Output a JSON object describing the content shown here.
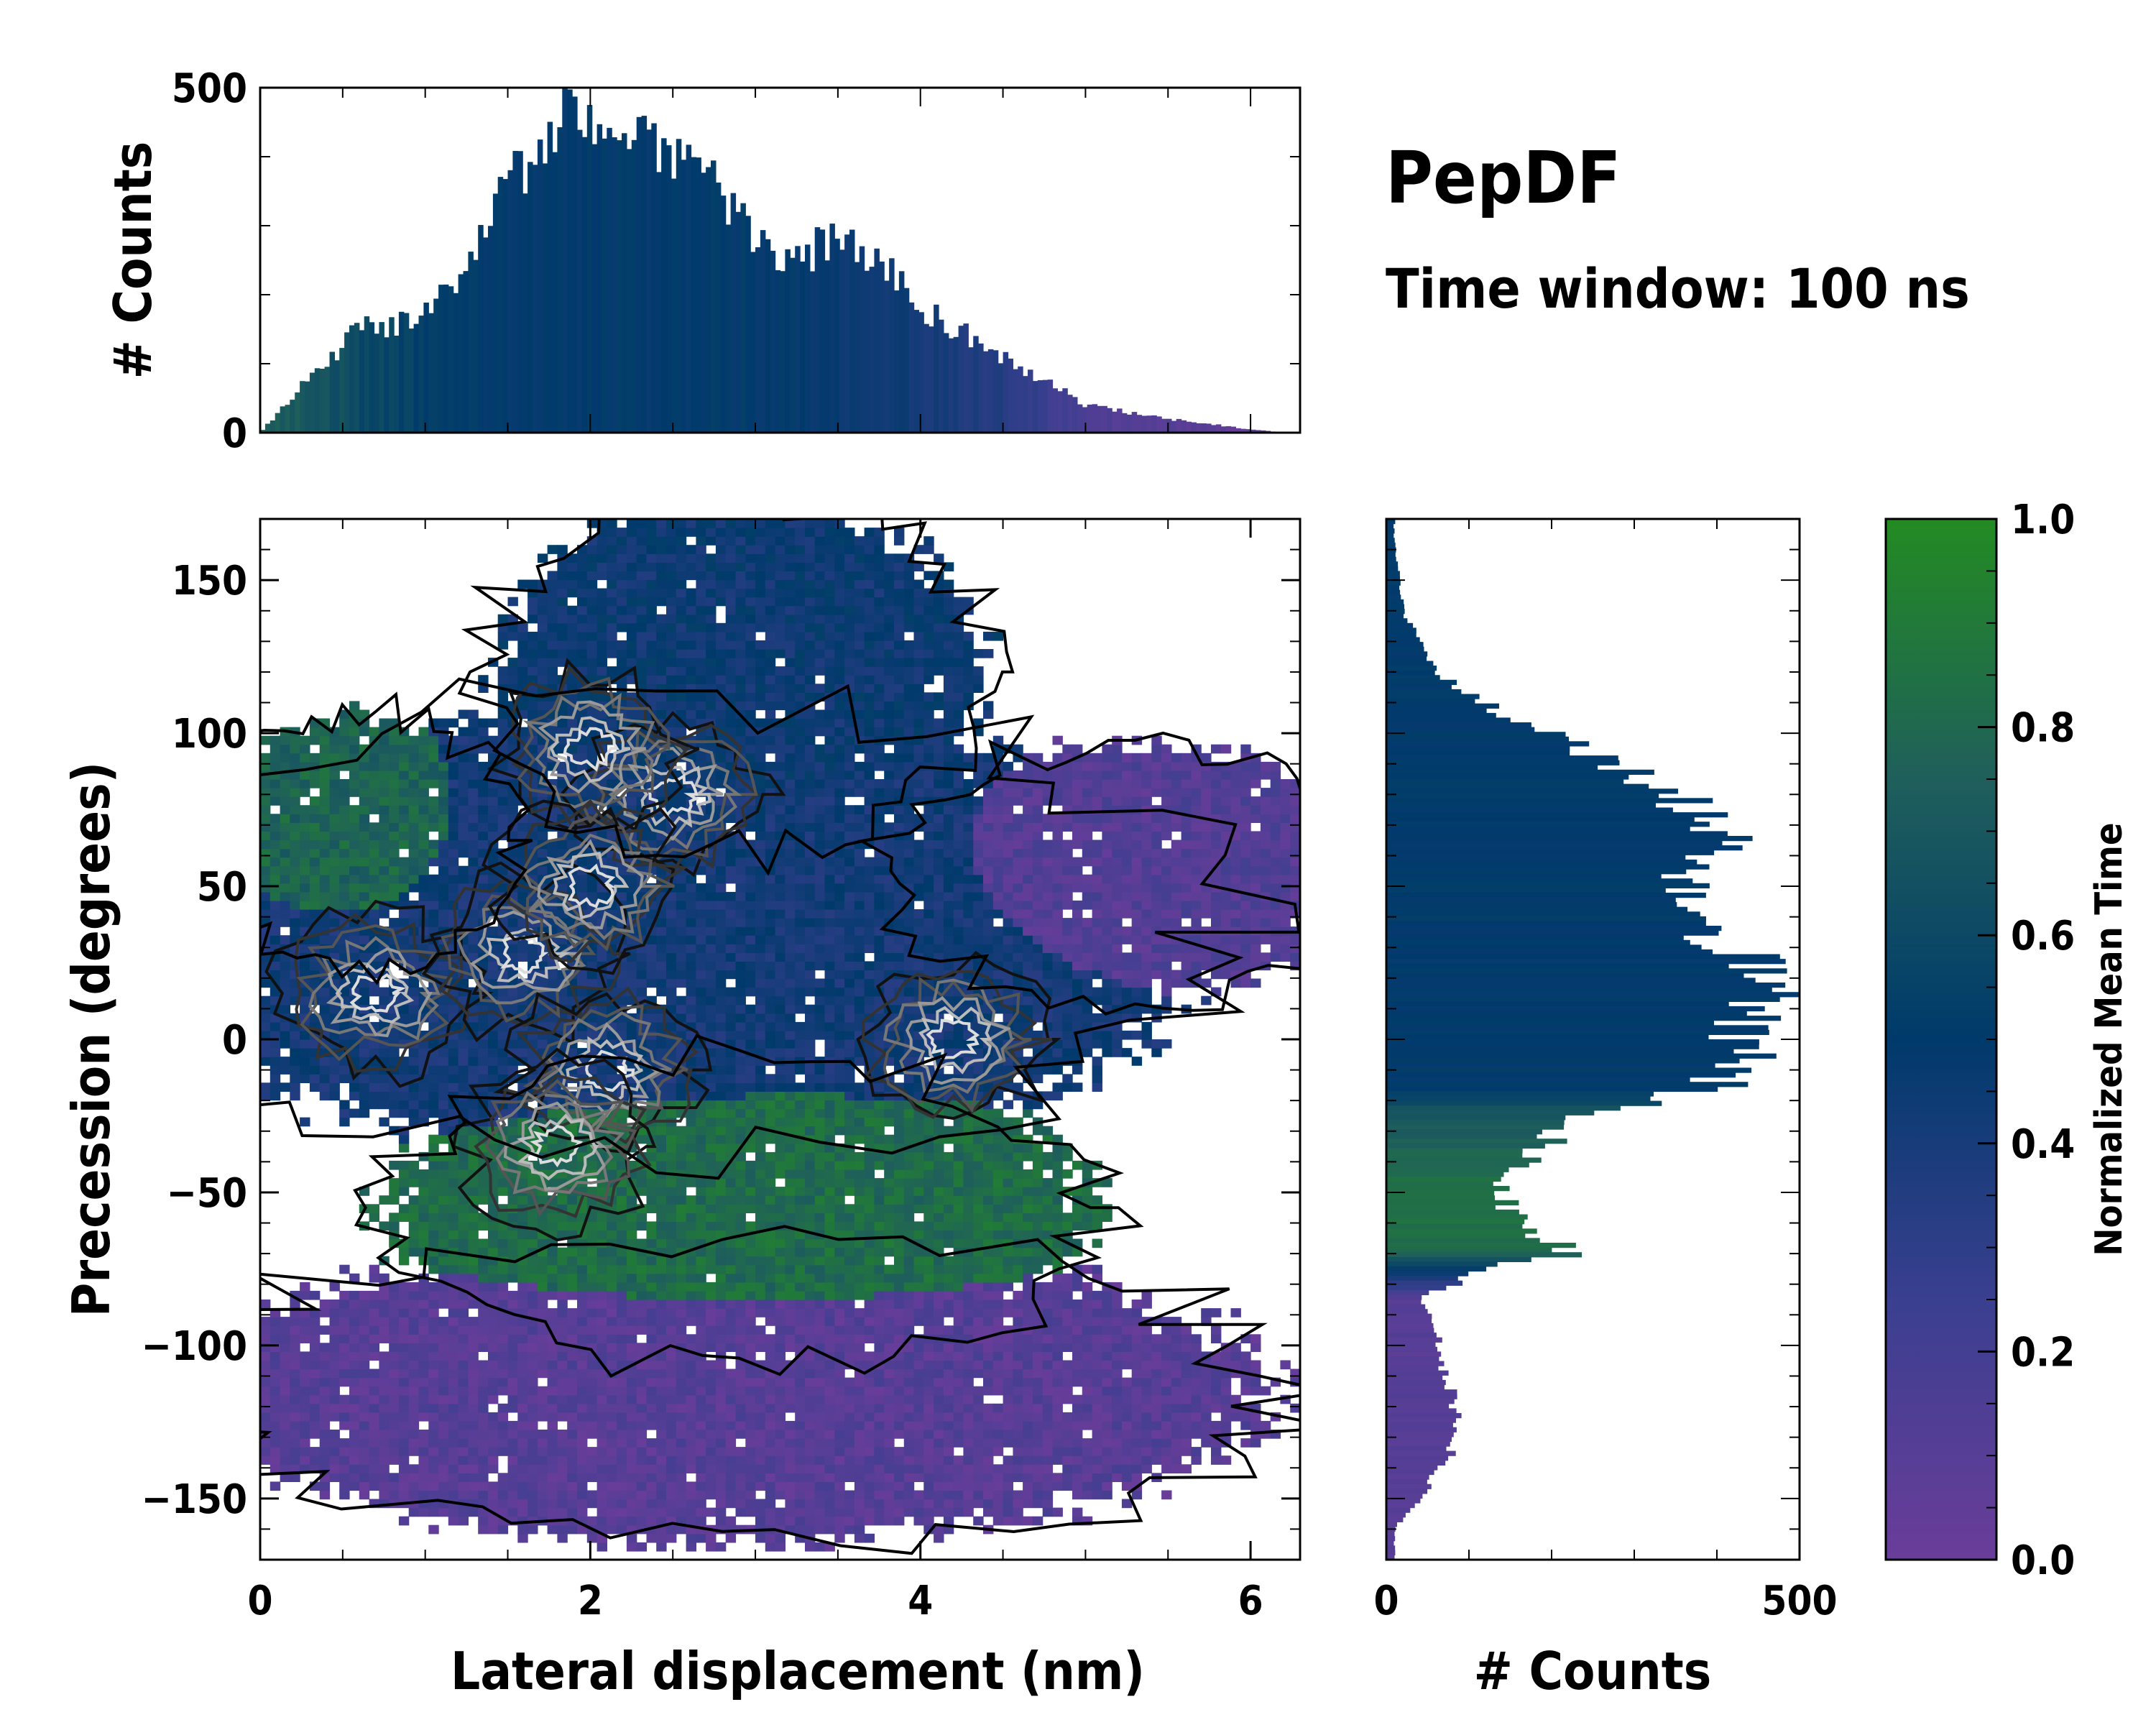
{
  "chart_data": {
    "type": "heatmap",
    "title": "PepDF",
    "subtitle": "Time window: 100 ns",
    "xlabel": "Lateral displacement (nm)",
    "ylabel": "Precession (degrees)",
    "xlim": [
      0,
      6.3
    ],
    "ylim": [
      -170,
      170
    ],
    "xticks": [
      "0",
      "2",
      "4",
      "6"
    ],
    "yticks": [
      "150",
      "100",
      "50",
      "0",
      "−50",
      "−100",
      "−150"
    ],
    "xtick_values": [
      0,
      2,
      4,
      6
    ],
    "ytick_values": [
      150,
      100,
      50,
      0,
      -50,
      -100,
      -150
    ],
    "colorbar": {
      "label": "Normalized Mean Time",
      "ticks": [
        "0.0",
        "0.2",
        "0.4",
        "0.6",
        "0.8",
        "1.0"
      ],
      "tick_values": [
        0,
        0.2,
        0.4,
        0.6,
        0.8,
        1.0
      ],
      "colors": [
        "#6a3d9a",
        "#3a3f8f",
        "#003a6b",
        "#1f5f5b",
        "#238b22"
      ]
    },
    "top_hist": {
      "ylabel": "# Counts",
      "yticks": [
        "500",
        "0"
      ],
      "ytick_values": [
        500,
        0
      ],
      "ylim": [
        0,
        500
      ],
      "profile_x": [
        0.0,
        0.3,
        0.6,
        0.9,
        1.2,
        1.5,
        1.7,
        1.85,
        2.0,
        2.2,
        2.5,
        2.8,
        3.0,
        3.2,
        3.5,
        3.8,
        4.0,
        4.5,
        5.0,
        5.5,
        6.0,
        6.2
      ],
      "profile_counts": [
        0,
        80,
        150,
        160,
        230,
        360,
        410,
        480,
        470,
        420,
        410,
        350,
        280,
        240,
        290,
        240,
        180,
        110,
        40,
        20,
        5,
        0
      ],
      "profile_color_t": [
        0.75,
        0.7,
        0.6,
        0.55,
        0.5,
        0.5,
        0.5,
        0.5,
        0.5,
        0.5,
        0.5,
        0.5,
        0.5,
        0.5,
        0.45,
        0.45,
        0.4,
        0.35,
        0.15,
        0.1,
        0.05,
        0.05
      ]
    },
    "right_hist": {
      "xlabel": "# Counts",
      "xticks": [
        "0",
        "500"
      ],
      "xtick_values": [
        0,
        500
      ],
      "xlim": [
        0,
        500
      ],
      "profile_y": [
        165,
        140,
        120,
        105,
        90,
        75,
        65,
        55,
        40,
        25,
        15,
        5,
        -5,
        -15,
        -25,
        -40,
        -50,
        -60,
        -70,
        -75,
        -85,
        -95,
        -110,
        -125,
        -135,
        -150,
        -160
      ],
      "profile_counts": [
        10,
        20,
        60,
        150,
        280,
        380,
        420,
        380,
        350,
        440,
        460,
        420,
        440,
        400,
        230,
        170,
        130,
        170,
        220,
        120,
        40,
        60,
        70,
        90,
        80,
        40,
        10
      ],
      "profile_color_t": [
        0.5,
        0.5,
        0.5,
        0.5,
        0.5,
        0.5,
        0.5,
        0.5,
        0.5,
        0.5,
        0.5,
        0.5,
        0.5,
        0.5,
        0.7,
        0.8,
        0.85,
        0.85,
        0.8,
        0.5,
        0.1,
        0.1,
        0.1,
        0.1,
        0.1,
        0.1,
        0.1
      ]
    },
    "regions": [
      {
        "name": "upper-blue",
        "color_t": 0.45,
        "center": [
          2.9,
          120
        ],
        "spread": [
          0.9,
          35
        ]
      },
      {
        "name": "left-green",
        "color_t": 0.78,
        "center": [
          0.6,
          65
        ],
        "spread": [
          0.55,
          25
        ]
      },
      {
        "name": "central-blue",
        "color_t": 0.42,
        "center": [
          2.4,
          35
        ],
        "spread": [
          2.0,
          45
        ]
      },
      {
        "name": "right-purple",
        "color_t": 0.12,
        "center": [
          5.3,
          55
        ],
        "spread": [
          0.9,
          25
        ]
      },
      {
        "name": "lower-green",
        "color_t": 0.82,
        "center": [
          2.9,
          -55
        ],
        "spread": [
          1.3,
          30
        ]
      },
      {
        "name": "bottom-purple",
        "color_t": 0.1,
        "center": [
          2.8,
          -115
        ],
        "spread": [
          2.0,
          30
        ]
      }
    ],
    "density_peaks": [
      {
        "x": 0.7,
        "y": 15
      },
      {
        "x": 1.6,
        "y": 28
      },
      {
        "x": 2.5,
        "y": 80
      },
      {
        "x": 2.0,
        "y": 95
      },
      {
        "x": 2.0,
        "y": 50
      },
      {
        "x": 2.1,
        "y": -10
      },
      {
        "x": 1.8,
        "y": -35
      },
      {
        "x": 4.2,
        "y": 0
      }
    ]
  }
}
